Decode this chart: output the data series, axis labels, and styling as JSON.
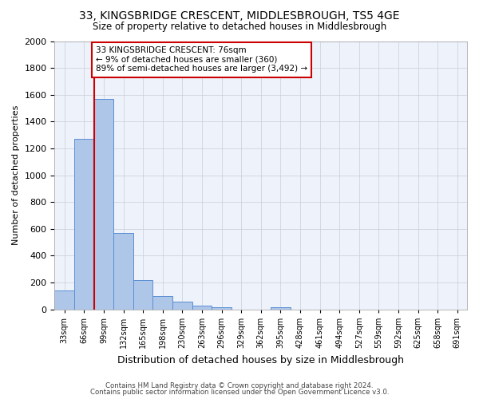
{
  "title": "33, KINGSBRIDGE CRESCENT, MIDDLESBROUGH, TS5 4GE",
  "subtitle": "Size of property relative to detached houses in Middlesbrough",
  "xlabel": "Distribution of detached houses by size in Middlesbrough",
  "ylabel": "Number of detached properties",
  "footnote1": "Contains HM Land Registry data © Crown copyright and database right 2024.",
  "footnote2": "Contains public sector information licensed under the Open Government Licence v3.0.",
  "bin_labels": [
    "33sqm",
    "66sqm",
    "99sqm",
    "132sqm",
    "165sqm",
    "198sqm",
    "230sqm",
    "263sqm",
    "296sqm",
    "329sqm",
    "362sqm",
    "395sqm",
    "428sqm",
    "461sqm",
    "494sqm",
    "527sqm",
    "559sqm",
    "592sqm",
    "625sqm",
    "658sqm",
    "691sqm"
  ],
  "bar_values": [
    140,
    1270,
    1570,
    570,
    220,
    100,
    55,
    25,
    15,
    0,
    0,
    15,
    0,
    0,
    0,
    0,
    0,
    0,
    0,
    0,
    0
  ],
  "bar_color": "#aec6e8",
  "bar_edge_color": "#5b8fd4",
  "vline_x": 1.5,
  "vline_color": "#cc0000",
  "ylim": [
    0,
    2000
  ],
  "yticks": [
    0,
    200,
    400,
    600,
    800,
    1000,
    1200,
    1400,
    1600,
    1800,
    2000
  ],
  "annotation_text": "33 KINGSBRIDGE CRESCENT: 76sqm\n← 9% of detached houses are smaller (360)\n89% of semi-detached houses are larger (3,492) →",
  "annotation_box_color": "#ffffff",
  "annotation_box_edge": "#cc0000",
  "bg_color": "#eef2fa",
  "grid_color": "#c8cdd8"
}
